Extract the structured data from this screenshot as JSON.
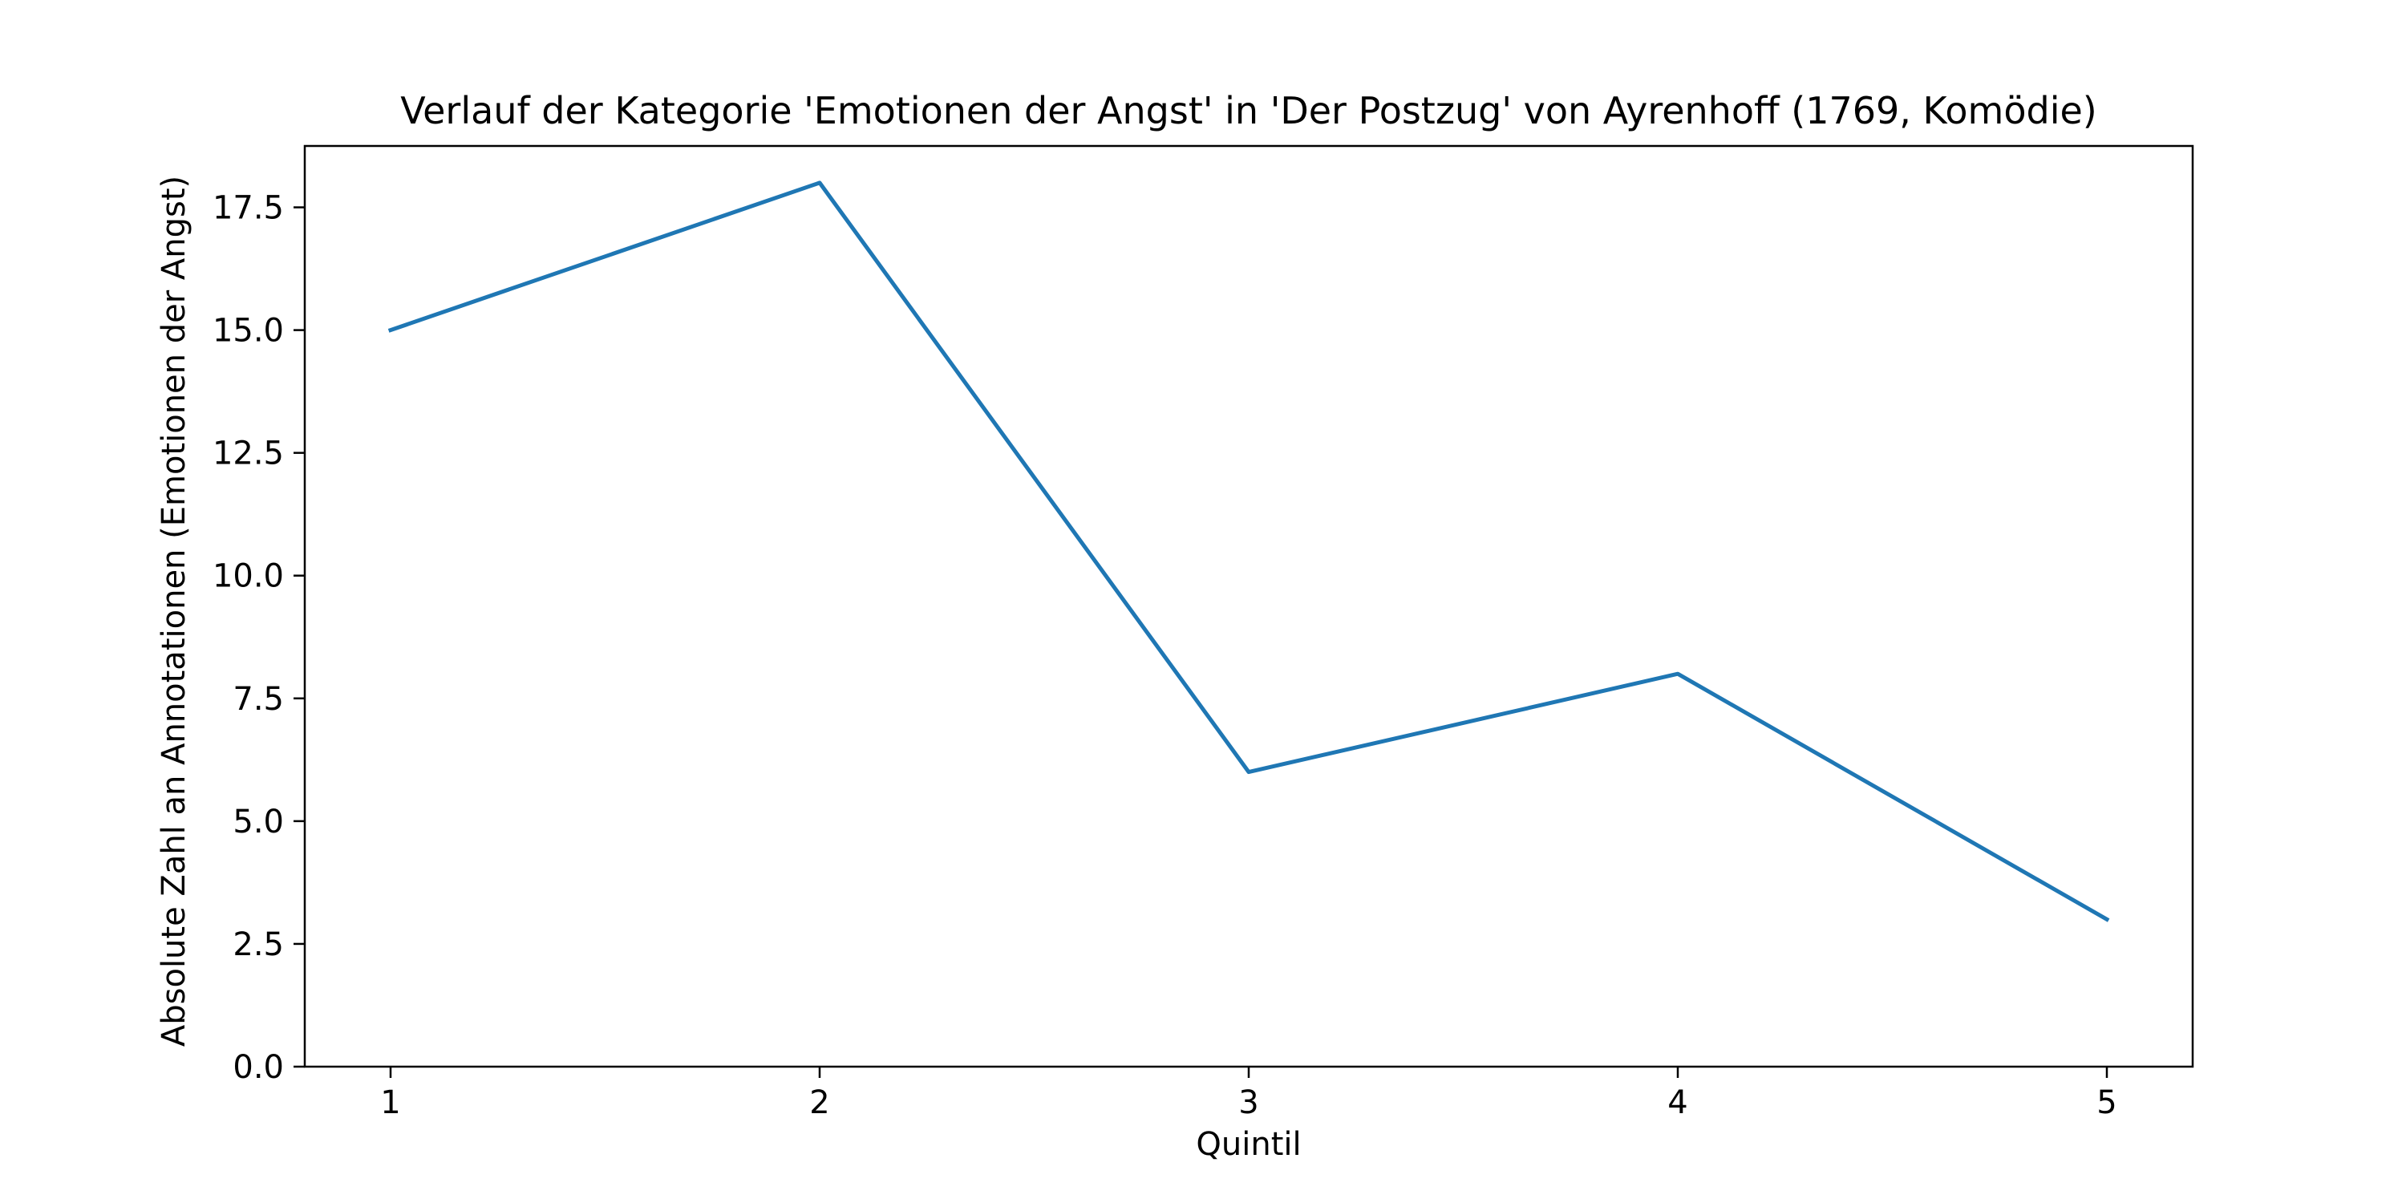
{
  "chart_data": {
    "type": "line",
    "title": "Verlauf der Kategorie 'Emotionen der Angst' in 'Der Postzug' von Ayrenhoff (1769, Komödie)",
    "xlabel": "Quintil",
    "ylabel": "Absolute Zahl an Annotationen (Emotionen der Angst)",
    "x": [
      1,
      2,
      3,
      4,
      5
    ],
    "series": [
      {
        "values": [
          15,
          18,
          6,
          8,
          3
        ],
        "color": "#1f77b4"
      }
    ],
    "xlim": [
      0.8,
      5.2
    ],
    "ylim": [
      0,
      18.75
    ],
    "x_ticks": [
      1,
      2,
      3,
      4,
      5
    ],
    "x_tick_labels": [
      "1",
      "2",
      "3",
      "4",
      "5"
    ],
    "y_ticks": [
      0,
      2.5,
      5,
      7.5,
      10,
      12.5,
      15,
      17.5
    ],
    "y_tick_labels": [
      "0.0",
      "2.5",
      "5.0",
      "7.5",
      "10.0",
      "12.5",
      "15.0",
      "17.5"
    ],
    "grid": false,
    "legend": "none"
  }
}
